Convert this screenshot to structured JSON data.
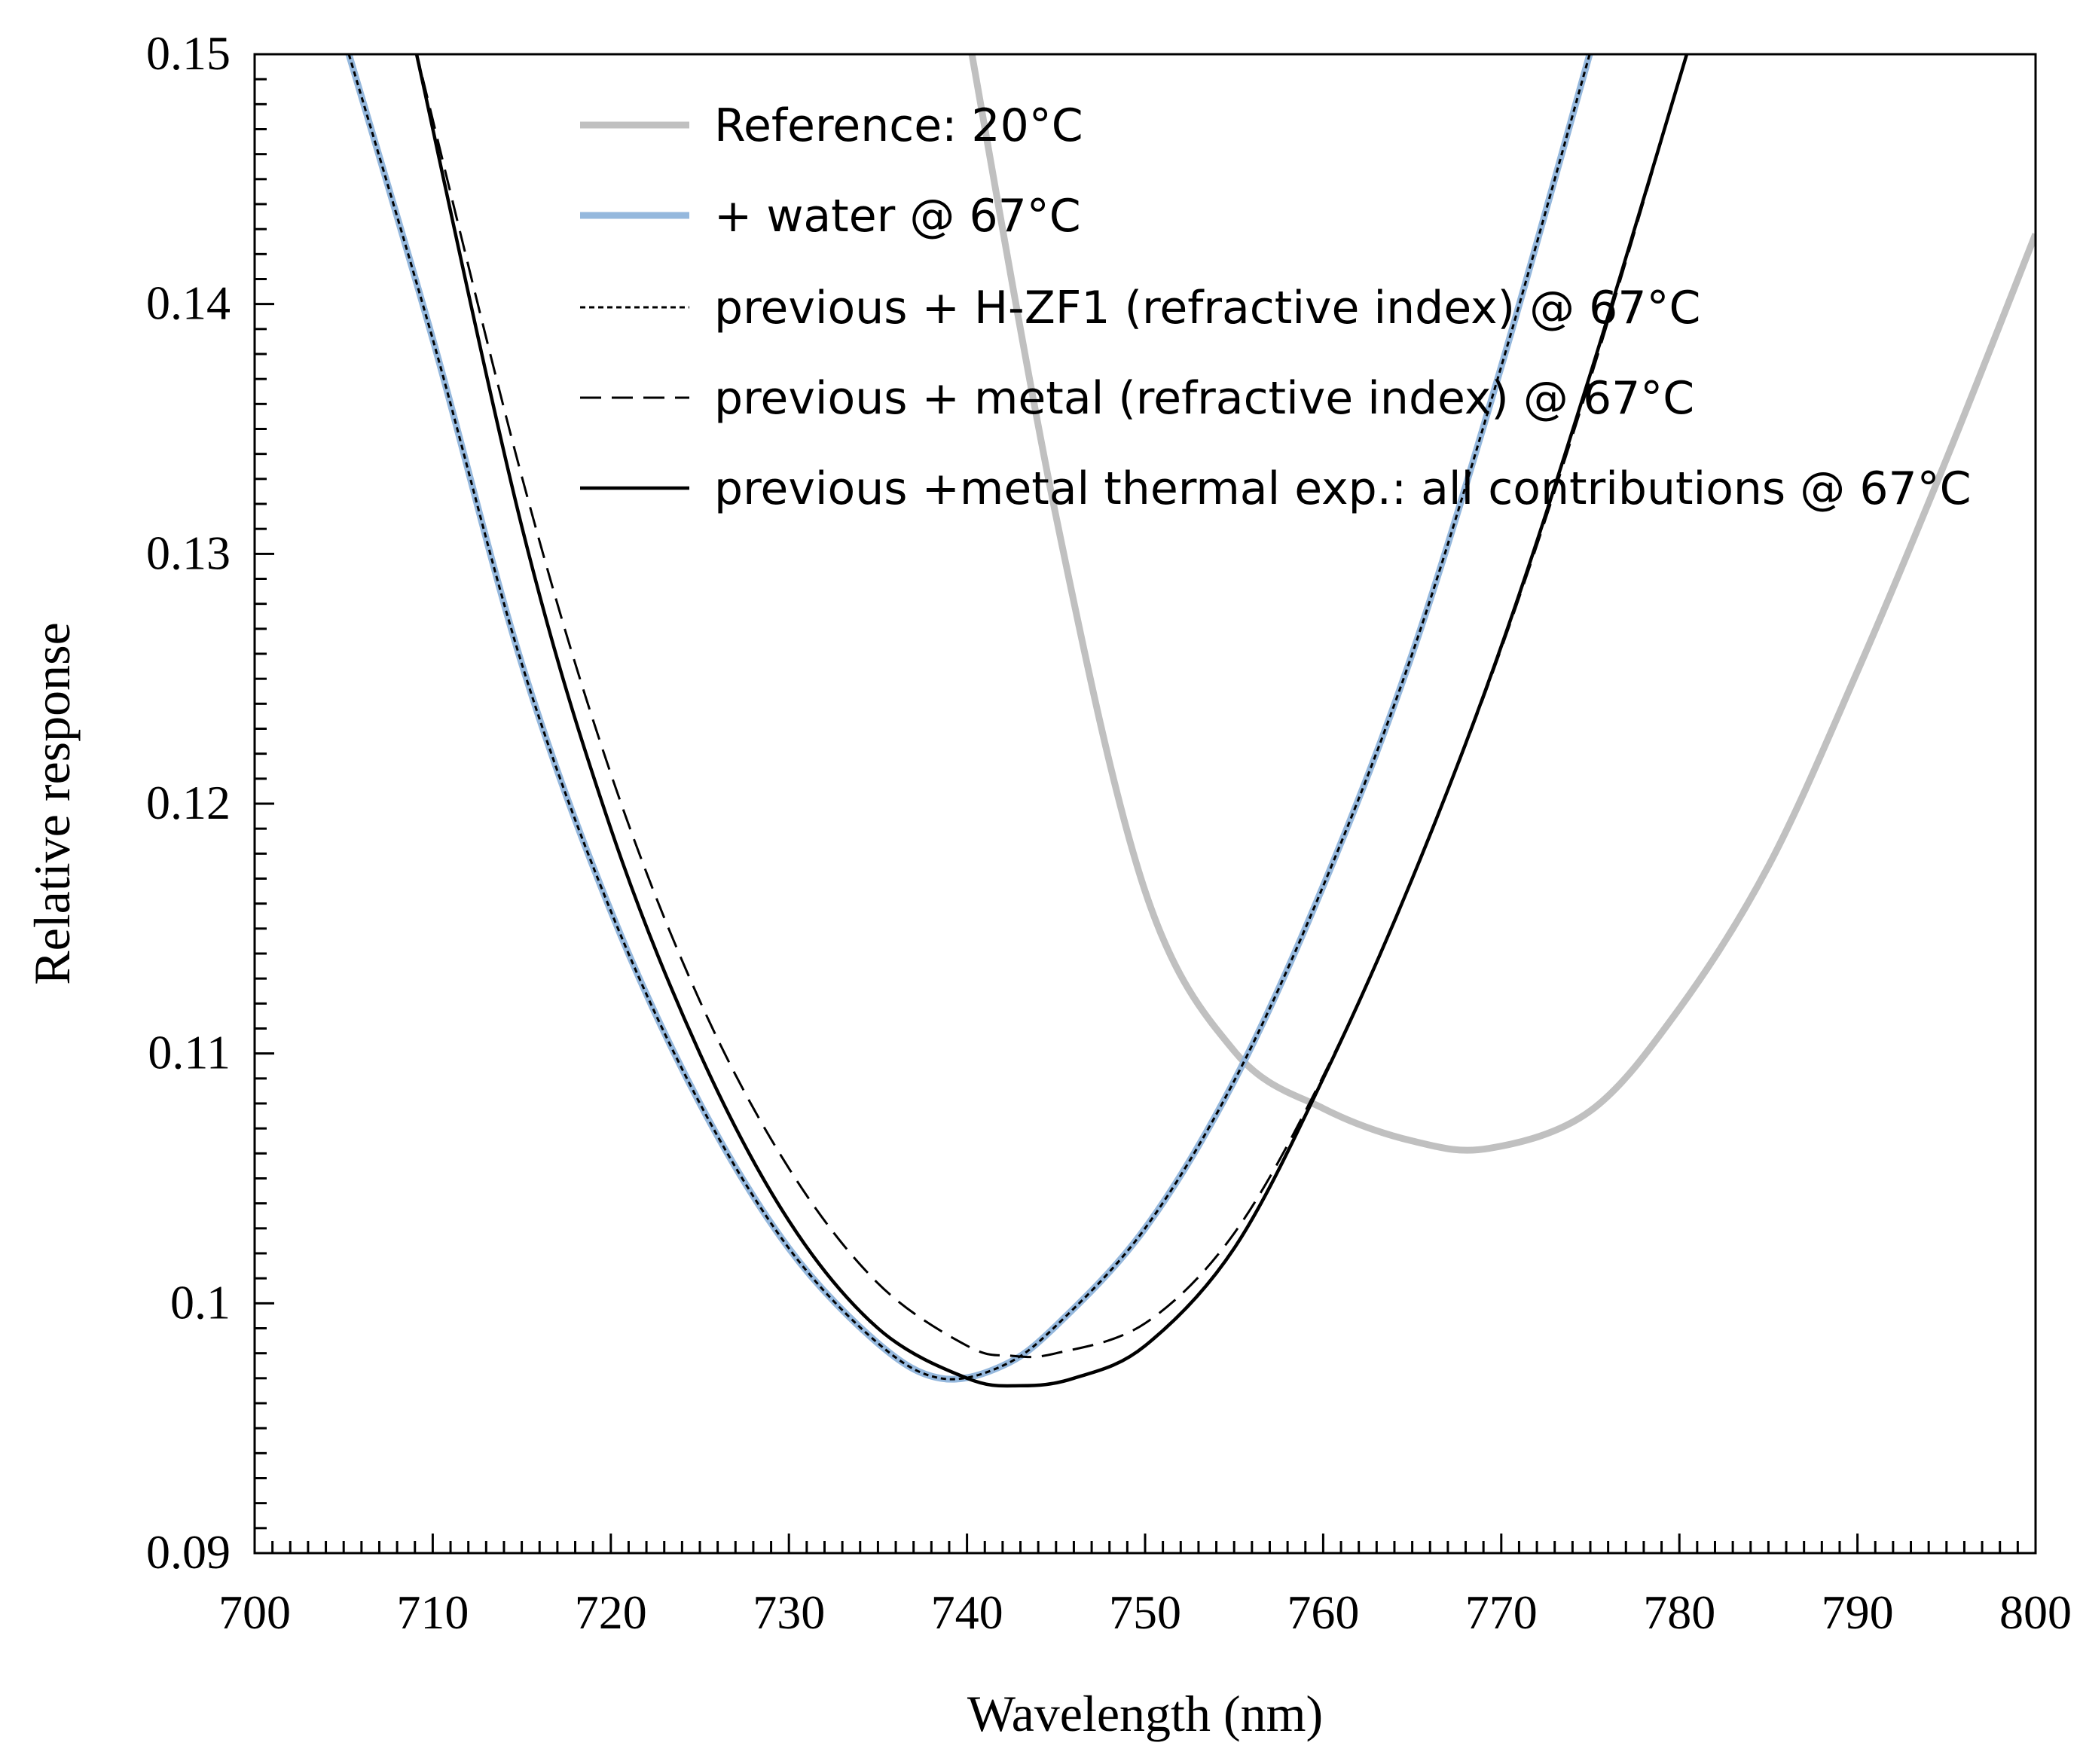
{
  "chart_data": {
    "type": "line",
    "title": "",
    "xlabel": "Wavelength (nm)",
    "ylabel": "Relative response",
    "xlim": [
      700,
      800
    ],
    "ylim": [
      0.09,
      0.15
    ],
    "xticks": [
      700,
      710,
      720,
      730,
      740,
      750,
      760,
      770,
      780,
      790,
      800
    ],
    "yticks": [
      0.09,
      0.1,
      0.11,
      0.12,
      0.13,
      0.14,
      0.15
    ],
    "xtick_labels": [
      "700",
      "710",
      "720",
      "730",
      "740",
      "750",
      "760",
      "770",
      "780",
      "790",
      "800"
    ],
    "ytick_labels": [
      "0.09",
      "0.1",
      "0.11",
      "0.12",
      "0.13",
      "0.14",
      "0.15"
    ],
    "grid": false,
    "legend_position": "top",
    "series": [
      {
        "name": "Reference: 20°C",
        "color": "#c0c0c0",
        "style": "solid-thick",
        "x": [
          740.0,
          745.0,
          750.0,
          755.0,
          760.0,
          765.0,
          769.3,
          775.0,
          780.0,
          785.0,
          790.0,
          795.0,
          800.0
        ],
        "y": [
          0.1511,
          0.1315,
          0.1165,
          0.1101,
          0.1078,
          0.1065,
          0.1062,
          0.1077,
          0.1118,
          0.1175,
          0.1253,
          0.1338,
          0.1428
        ]
      },
      {
        "name": "+ water @ 67°C",
        "color": "#95b8dd",
        "style": "solid-thick",
        "x": [
          705.0,
          710.0,
          715.0,
          720.0,
          725.0,
          730.0,
          735.0,
          738.5,
          742.0,
          745.0,
          750.0,
          755.0,
          760.0,
          765.0,
          770.0,
          775.2
        ],
        "y": [
          0.1507,
          0.1386,
          0.1256,
          0.1157,
          0.108,
          0.1022,
          0.0984,
          0.097,
          0.0975,
          0.0991,
          0.103,
          0.1089,
          0.1167,
          0.126,
          0.1375,
          0.1506
        ]
      },
      {
        "name": "previous + H-ZF1 (refractive index) @ 67°C",
        "color": "#000000",
        "style": "dotted",
        "x": [
          705.0,
          710.0,
          715.0,
          720.0,
          725.0,
          730.0,
          735.0,
          738.5,
          742.0,
          745.0,
          750.0,
          755.0,
          760.0,
          765.0,
          770.0,
          775.2
        ],
        "y": [
          0.1507,
          0.1386,
          0.1256,
          0.1157,
          0.108,
          0.1022,
          0.0984,
          0.097,
          0.0975,
          0.0991,
          0.103,
          0.1089,
          0.1167,
          0.126,
          0.1375,
          0.1506
        ]
      },
      {
        "name": "previous + metal (refractive index) @ 67°C",
        "color": "#000000",
        "style": "dashed",
        "x": [
          709.0,
          715.0,
          720.0,
          725.0,
          730.0,
          735.0,
          740.0,
          742.5,
          745.0,
          750.0,
          755.0,
          760.0,
          765.0,
          770.0,
          775.0,
          780.5
        ],
        "y": [
          0.1503,
          0.1331,
          0.1212,
          0.1121,
          0.1054,
          0.1008,
          0.0983,
          0.0979,
          0.098,
          0.0992,
          0.1028,
          0.1091,
          0.117,
          0.1262,
          0.137,
          0.1502
        ]
      },
      {
        "name": "previous +metal thermal exp.: all contributions @ 67°C",
        "color": "#000000",
        "style": "solid",
        "x": [
          709.0,
          715.0,
          720.0,
          725.0,
          730.0,
          735.0,
          740.0,
          743.0,
          746.0,
          750.0,
          755.0,
          760.0,
          765.0,
          770.0,
          775.0,
          780.5
        ],
        "y": [
          0.1503,
          0.1311,
          0.119,
          0.11,
          0.1033,
          0.099,
          0.097,
          0.0967,
          0.097,
          0.0983,
          0.1022,
          0.109,
          0.117,
          0.1263,
          0.1372,
          0.1502
        ]
      }
    ]
  }
}
